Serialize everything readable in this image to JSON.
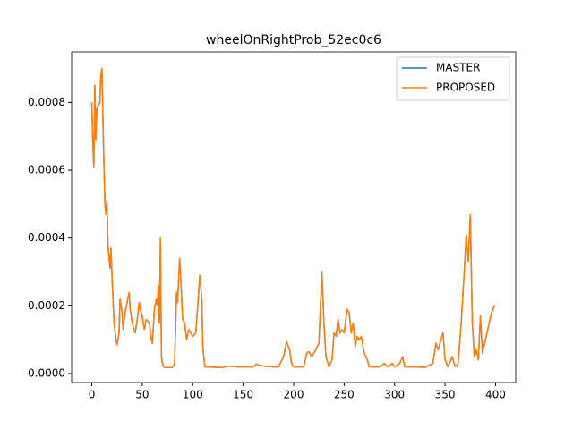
{
  "chart_data": {
    "type": "line",
    "title": "wheelOnRightProb_52ec0c6",
    "x": [
      0,
      1,
      2,
      3,
      4,
      5,
      8,
      9,
      10,
      11,
      12,
      13,
      14,
      15,
      16,
      18,
      19,
      20,
      22,
      24,
      25,
      27,
      28,
      30,
      31,
      33,
      35,
      37,
      38,
      40,
      43,
      45,
      47,
      48,
      50,
      52,
      54,
      57,
      59,
      60,
      62,
      64,
      65,
      66,
      67,
      68,
      69,
      70,
      72,
      80,
      82,
      84,
      85,
      87,
      88,
      90,
      92,
      94,
      96,
      98,
      100,
      103,
      105,
      107,
      109,
      110,
      112,
      130,
      135,
      145,
      160,
      163,
      170,
      180,
      185,
      190,
      193,
      196,
      198,
      200,
      210,
      213,
      215,
      218,
      222,
      225,
      228,
      230,
      232,
      235,
      238,
      240,
      242,
      244,
      246,
      248,
      250,
      253,
      255,
      257,
      259,
      261,
      263,
      265,
      267,
      270,
      273,
      275,
      285,
      290,
      293,
      298,
      300,
      305,
      308,
      310,
      320,
      330,
      338,
      341,
      343,
      346,
      348,
      350,
      353,
      357,
      360,
      363,
      366,
      369,
      371,
      373,
      375,
      377,
      379,
      381,
      383,
      385,
      387,
      390,
      393,
      396,
      399
    ],
    "series": [
      {
        "name": "MASTER",
        "color": "#1f77b4",
        "values": [
          0.0008,
          0.00068,
          0.00061,
          0.00085,
          0.00069,
          0.00078,
          0.0008,
          0.00088,
          0.0009,
          0.00075,
          0.00062,
          0.0005,
          0.00047,
          0.00051,
          0.00038,
          0.00031,
          0.00037,
          0.00029,
          0.00015,
          0.0001,
          8.5e-05,
          0.00012,
          0.00022,
          0.00018,
          0.00013,
          0.00018,
          0.00021,
          0.00024,
          0.00019,
          0.00015,
          0.00012,
          0.00016,
          0.00021,
          0.00019,
          0.00017,
          0.00013,
          0.00016,
          0.00015,
          0.0001,
          9e-05,
          0.00019,
          0.00022,
          0.0002,
          0.00026,
          0.00015,
          0.0004,
          5e-05,
          3e-05,
          1.8e-05,
          1.8e-05,
          3e-05,
          0.00024,
          0.00021,
          0.00034,
          0.00029,
          0.00016,
          0.00015,
          0.0001,
          0.00013,
          0.00012,
          0.00011,
          0.00012,
          0.0002,
          0.00029,
          0.00022,
          8e-05,
          2e-05,
          1.8e-05,
          2.2e-05,
          2e-05,
          2e-05,
          2.8e-05,
          2.2e-05,
          2e-05,
          2e-05,
          5e-05,
          9.5e-05,
          7e-05,
          3e-05,
          2e-05,
          2e-05,
          6e-05,
          6.5e-05,
          5e-05,
          7e-05,
          9e-05,
          0.0003,
          0.00015,
          5e-05,
          2e-05,
          4e-05,
          0.00012,
          0.00011,
          0.00016,
          0.00012,
          0.00013,
          0.00012,
          0.00019,
          0.00018,
          0.00012,
          0.00015,
          8e-05,
          0.00011,
          0.0001,
          0.00011,
          6e-05,
          4e-05,
          2e-05,
          2e-05,
          3e-05,
          2e-05,
          3e-05,
          2e-05,
          3e-05,
          5e-05,
          2e-05,
          2e-05,
          1.8e-05,
          3e-05,
          9e-05,
          7e-05,
          0.0001,
          0.00012,
          4e-05,
          2e-05,
          5e-05,
          2e-05,
          3e-05,
          0.00015,
          0.0003,
          0.00041,
          0.00033,
          0.00047,
          0.00015,
          5e-05,
          7e-05,
          4e-05,
          0.00017,
          6e-05,
          0.0001,
          0.00014,
          0.00018,
          0.0002
        ]
      },
      {
        "name": "PROPOSED",
        "color": "#ff7f0e",
        "values": [
          0.0008,
          0.00068,
          0.00061,
          0.00085,
          0.00069,
          0.00078,
          0.0008,
          0.00088,
          0.0009,
          0.00075,
          0.00062,
          0.0005,
          0.00047,
          0.00051,
          0.00038,
          0.00031,
          0.00037,
          0.00029,
          0.00015,
          0.0001,
          8.5e-05,
          0.00012,
          0.00022,
          0.00018,
          0.00013,
          0.00018,
          0.00021,
          0.00024,
          0.00019,
          0.00015,
          0.00012,
          0.00016,
          0.00021,
          0.00019,
          0.00017,
          0.00013,
          0.00016,
          0.00015,
          0.0001,
          9e-05,
          0.00019,
          0.00022,
          0.0002,
          0.00026,
          0.00015,
          0.0004,
          5e-05,
          3e-05,
          1.8e-05,
          1.8e-05,
          3e-05,
          0.00024,
          0.00021,
          0.00034,
          0.00029,
          0.00016,
          0.00015,
          0.0001,
          0.00013,
          0.00012,
          0.00011,
          0.00012,
          0.0002,
          0.00029,
          0.00022,
          8e-05,
          2e-05,
          1.8e-05,
          2.2e-05,
          2e-05,
          2e-05,
          2.8e-05,
          2.2e-05,
          2e-05,
          2e-05,
          5e-05,
          9.5e-05,
          7e-05,
          3e-05,
          2e-05,
          2e-05,
          6e-05,
          6.5e-05,
          5e-05,
          7e-05,
          9e-05,
          0.0003,
          0.00015,
          5e-05,
          2e-05,
          4e-05,
          0.00012,
          0.00011,
          0.00016,
          0.00012,
          0.00013,
          0.00012,
          0.00019,
          0.00018,
          0.00012,
          0.00015,
          8e-05,
          0.00011,
          0.0001,
          0.00011,
          6e-05,
          4e-05,
          2e-05,
          2e-05,
          3e-05,
          2e-05,
          3e-05,
          2e-05,
          3e-05,
          5e-05,
          2e-05,
          2e-05,
          1.8e-05,
          3e-05,
          9e-05,
          7e-05,
          0.0001,
          0.00012,
          4e-05,
          2e-05,
          5e-05,
          2e-05,
          3e-05,
          0.00015,
          0.0003,
          0.00041,
          0.00033,
          0.00047,
          0.00015,
          5e-05,
          7e-05,
          4e-05,
          0.00017,
          6e-05,
          0.0001,
          0.00014,
          0.00018,
          0.0002
        ]
      }
    ],
    "xlim": [
      -20,
      420
    ],
    "xticks": [
      0,
      50,
      100,
      150,
      200,
      250,
      300,
      350,
      400
    ],
    "ylim": [
      -2.64e-05,
      0.000949
    ],
    "yticks": [
      {
        "value": 0,
        "label": "0.0000"
      },
      {
        "value": 0.0002,
        "label": "0.0002"
      },
      {
        "value": 0.0004,
        "label": "0.0004"
      },
      {
        "value": 0.0006,
        "label": "0.0006"
      },
      {
        "value": 0.0008,
        "label": "0.0008"
      }
    ],
    "legend": "upper right"
  }
}
